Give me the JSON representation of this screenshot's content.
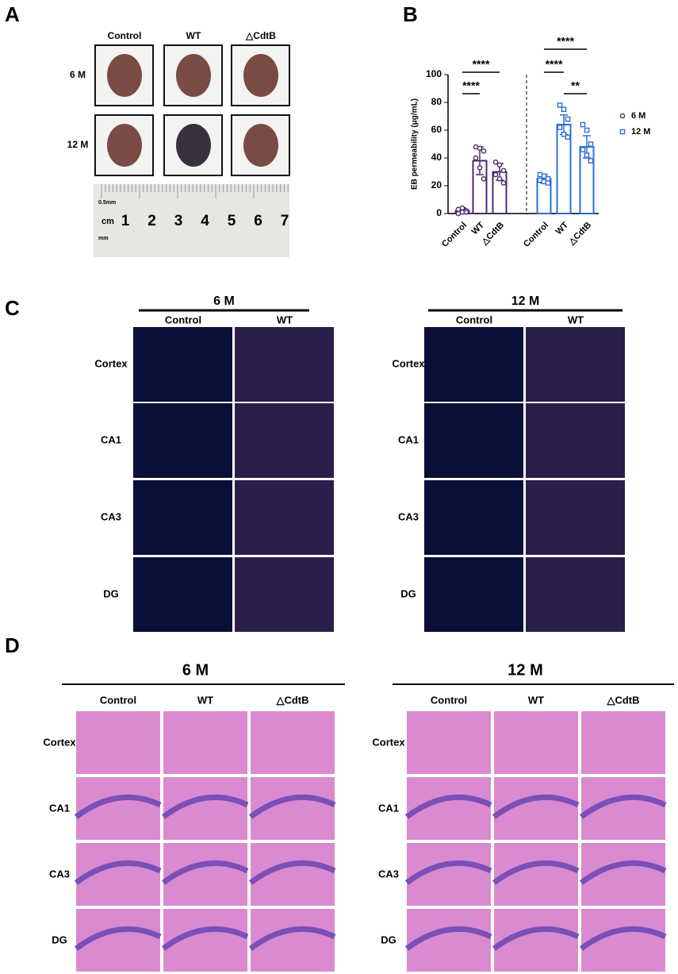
{
  "panel_labels": [
    "A",
    "B",
    "C",
    "D"
  ],
  "panel_a": {
    "columns": [
      "Control",
      "WT",
      "△CdtB"
    ],
    "rows": [
      "6 M",
      "12 M"
    ],
    "ruler": {
      "unit": "cm",
      "numbers": [
        "1",
        "2",
        "3",
        "4",
        "5",
        "6",
        "7"
      ],
      "small": [
        "0.5mm",
        "mm"
      ]
    }
  },
  "chart_data": {
    "type": "bar",
    "y_label": "EB permeability (μg/mL)",
    "categories": [
      "Control",
      "WT",
      "△CdtB",
      "Control",
      "WT",
      "△CdtB"
    ],
    "series": [
      {
        "name": "6 M",
        "color": "#4b2a6e",
        "marker": "circle",
        "values": [
          2,
          38,
          30,
          null,
          null,
          null
        ],
        "errors": [
          2,
          10,
          6,
          null,
          null,
          null
        ],
        "points": [
          [
            0,
            1,
            2,
            3,
            4,
            1
          ],
          [
            48,
            47,
            45,
            40,
            33,
            25
          ],
          [
            37,
            35,
            31,
            28,
            25,
            22
          ],
          null,
          null,
          null
        ]
      },
      {
        "name": "12 M",
        "color": "#2d6fd8",
        "marker": "square",
        "values": [
          null,
          null,
          null,
          25,
          64,
          48
        ],
        "errors": [
          null,
          null,
          null,
          3,
          7,
          8
        ],
        "points": [
          null,
          null,
          null,
          [
            28,
            27,
            25,
            24,
            23,
            22
          ],
          [
            78,
            75,
            68,
            62,
            57,
            55
          ],
          [
            64,
            60,
            50,
            46,
            42,
            38
          ]
        ]
      }
    ],
    "ylim": [
      0,
      100
    ],
    "yticks": [
      0,
      20,
      40,
      60,
      80,
      100
    ],
    "annotations": [
      "****",
      "****",
      "****",
      "****",
      "**"
    ]
  },
  "panel_c": {
    "groups": [
      "6 M",
      "12 M"
    ],
    "columns": [
      "Control",
      "WT"
    ],
    "rows": [
      "Cortex",
      "CA1",
      "CA3",
      "DG"
    ]
  },
  "panel_d": {
    "groups": [
      "6 M",
      "12 M"
    ],
    "columns": [
      "Control",
      "WT",
      "△CdtB"
    ],
    "rows": [
      "Cortex",
      "CA1",
      "CA3",
      "DG"
    ]
  }
}
